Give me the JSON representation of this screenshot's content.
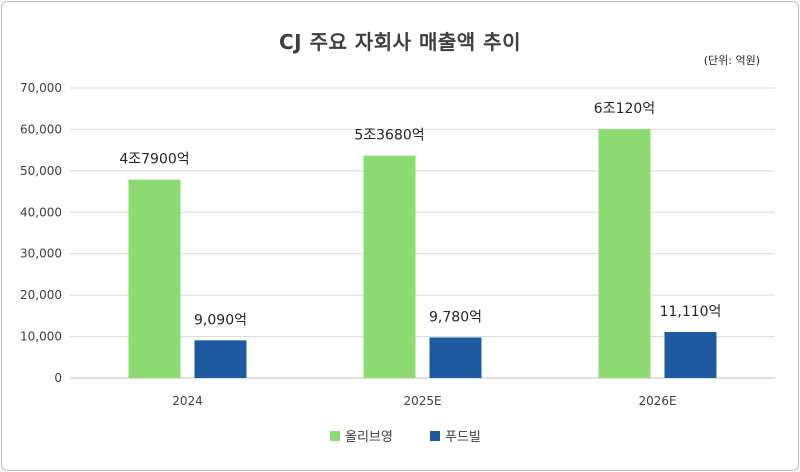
{
  "title": "CJ 주요 자회사 매출액 추이",
  "unit_note": "(단위: 억원)",
  "chart_data": {
    "type": "bar",
    "categories": [
      "2024",
      "2025E",
      "2026E"
    ],
    "series": [
      {
        "name": "올리브영",
        "values": [
          47900,
          53680,
          60120
        ],
        "labels": [
          "4조7900억",
          "5조3680억",
          "6조120억"
        ]
      },
      {
        "name": "푸드빌",
        "values": [
          9090,
          9780,
          11110
        ],
        "labels": [
          "9,090억",
          "9,780억",
          "11,110억"
        ]
      }
    ],
    "y_ticks": [
      "0",
      "10,000",
      "20,000",
      "30,000",
      "40,000",
      "50,000",
      "60,000",
      "70,000"
    ],
    "ylim": [
      0,
      70000
    ],
    "grid": true,
    "legend_position": "bottom",
    "colors": [
      "#8fdb73",
      "#1f5aa0"
    ]
  }
}
